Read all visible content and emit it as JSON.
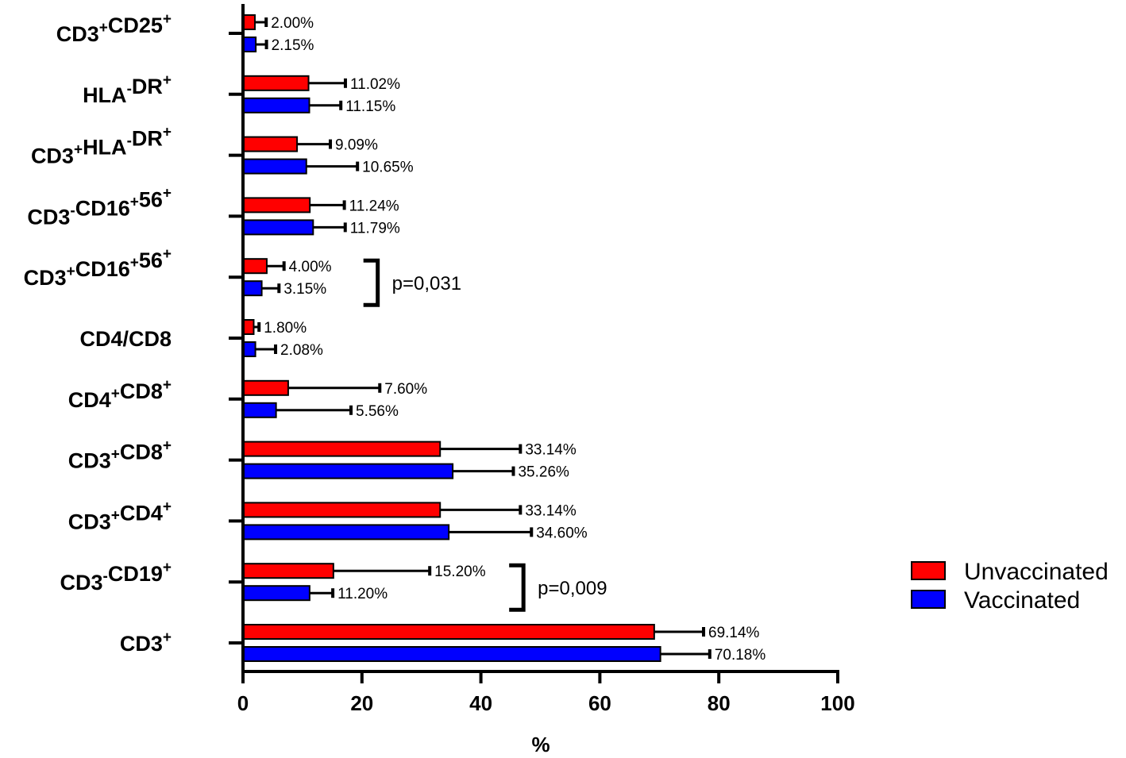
{
  "chart_data": {
    "type": "bar",
    "orientation": "horizontal",
    "title": "",
    "xlabel": "%",
    "ylabel": "",
    "xlim": [
      0,
      100
    ],
    "xticks": [
      0,
      20,
      40,
      60,
      80,
      100
    ],
    "grid": false,
    "legend_position": "right",
    "categories": [
      "CD3+CD25+",
      "HLA-DR+",
      "CD3+HLA-DR+",
      "CD3-CD16+56+",
      "CD3+CD16+56+",
      "CD4/CD8",
      "CD4+CD8+",
      "CD3+CD8+",
      "CD3+CD4+",
      "CD3-CD19+",
      "CD3+"
    ],
    "series": [
      {
        "name": "Unvaccinated",
        "color": "#ff0000",
        "values": [
          2.0,
          11.02,
          9.09,
          11.24,
          4.0,
          1.8,
          7.6,
          33.14,
          33.14,
          15.2,
          69.14
        ],
        "labels": [
          "2.00%",
          "11.02%",
          "9.09%",
          "11.24%",
          "4.00%",
          "1.80%",
          "7.60%",
          "33.14%",
          "33.14%",
          "15.20%",
          "69.14%"
        ],
        "error": [
          1.9,
          6.2,
          5.6,
          5.8,
          2.9,
          0.9,
          15.4,
          13.5,
          13.5,
          16.2,
          8.3
        ]
      },
      {
        "name": "Vaccinated",
        "color": "#0000ff",
        "values": [
          2.15,
          11.15,
          10.65,
          11.79,
          3.15,
          2.08,
          5.56,
          35.26,
          34.6,
          11.2,
          70.18
        ],
        "labels": [
          "2.15%",
          "11.15%",
          "10.65%",
          "11.79%",
          "3.15%",
          "2.08%",
          "5.56%",
          "35.26%",
          "34.60%",
          "11.20%",
          "70.18%"
        ],
        "error": [
          1.8,
          5.3,
          8.6,
          5.4,
          2.9,
          3.4,
          12.6,
          10.2,
          13.9,
          3.9,
          8.3
        ]
      }
    ],
    "annotations": [
      {
        "category": "CD3+CD16+56+",
        "text": "p=0,031"
      },
      {
        "category": "CD3-CD19+",
        "text": "p=0,009"
      }
    ]
  }
}
